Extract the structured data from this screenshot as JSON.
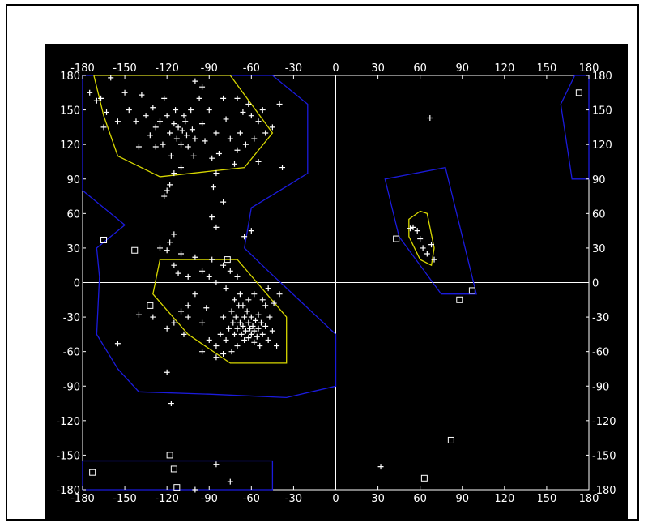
{
  "colors": {
    "background": "#000000",
    "frame": "#ffffff",
    "axes_lines": "#ffffff",
    "region_core": "#d8d800",
    "region_allowed": "#1b1bdd",
    "points": "#ffffff"
  },
  "chart_data": {
    "type": "scatter",
    "title": "",
    "xlabel": "",
    "ylabel": "",
    "xlim": [
      -180,
      180
    ],
    "ylim": [
      -180,
      180
    ],
    "grid": false,
    "x_ticks": [
      -180,
      -150,
      -120,
      -90,
      -60,
      -30,
      0,
      30,
      60,
      90,
      120,
      150,
      180
    ],
    "y_ticks": [
      -180,
      -150,
      -120,
      -90,
      -60,
      -30,
      0,
      30,
      60,
      90,
      120,
      150,
      180
    ],
    "x_tick_labels": [
      "-180",
      "-150",
      "-120",
      "-90",
      "-60",
      "-30",
      "0",
      "30",
      "60",
      "90",
      "120",
      "150",
      "180"
    ],
    "y_tick_labels": [
      "-180",
      "-150",
      "-120",
      "-90",
      "-60",
      "-30",
      "0",
      "30",
      "60",
      "90",
      "120",
      "150",
      "180"
    ],
    "regions": [
      {
        "kind": "allowed",
        "color": "#1b1bdd",
        "points": [
          [
            -180,
            180
          ],
          [
            -45,
            180
          ],
          [
            -20,
            155
          ],
          [
            -20,
            95
          ],
          [
            -33,
            85
          ],
          [
            -60,
            65
          ],
          [
            -65,
            30
          ],
          [
            -48,
            10
          ],
          [
            0,
            -45
          ],
          [
            0,
            -90
          ],
          [
            -35,
            -100
          ],
          [
            -90,
            -97
          ],
          [
            -140,
            -95
          ],
          [
            -155,
            -75
          ],
          [
            -170,
            -45
          ],
          [
            -168,
            5
          ],
          [
            -170,
            30
          ],
          [
            -150,
            50
          ],
          [
            -180,
            80
          ]
        ]
      },
      {
        "kind": "allowed",
        "color": "#1b1bdd",
        "points": [
          [
            35,
            90
          ],
          [
            78,
            100
          ],
          [
            100,
            -10
          ],
          [
            75,
            -10
          ],
          [
            45,
            40
          ]
        ]
      },
      {
        "kind": "allowed",
        "color": "#1b1bdd",
        "points": [
          [
            170,
            180
          ],
          [
            180,
            180
          ],
          [
            180,
            90
          ],
          [
            168,
            90
          ],
          [
            160,
            155
          ]
        ]
      },
      {
        "kind": "allowed",
        "color": "#1b1bdd",
        "points": [
          [
            -180,
            -155
          ],
          [
            -45,
            -155
          ],
          [
            -45,
            -180
          ],
          [
            -180,
            -180
          ]
        ]
      },
      {
        "kind": "core",
        "color": "#d8d800",
        "points": [
          [
            -172,
            180
          ],
          [
            -75,
            180
          ],
          [
            -45,
            130
          ],
          [
            -65,
            100
          ],
          [
            -125,
            92
          ],
          [
            -155,
            110
          ],
          [
            -165,
            145
          ]
        ]
      },
      {
        "kind": "core",
        "color": "#d8d800",
        "points": [
          [
            -125,
            20
          ],
          [
            -70,
            20
          ],
          [
            -35,
            -30
          ],
          [
            -35,
            -70
          ],
          [
            -75,
            -70
          ],
          [
            -105,
            -45
          ],
          [
            -130,
            -10
          ]
        ]
      },
      {
        "kind": "core",
        "color": "#d8d800",
        "points": [
          [
            52,
            55
          ],
          [
            60,
            62
          ],
          [
            65,
            60
          ],
          [
            70,
            30
          ],
          [
            68,
            15
          ],
          [
            60,
            20
          ],
          [
            52,
            40
          ]
        ]
      }
    ],
    "series": [
      {
        "marker": "plus",
        "color": "#ffffff",
        "points": [
          [
            -175,
            165
          ],
          [
            -170,
            158
          ],
          [
            -167,
            160
          ],
          [
            -163,
            148
          ],
          [
            -165,
            135
          ],
          [
            -160,
            178
          ],
          [
            -150,
            165
          ],
          [
            -147,
            150
          ],
          [
            -142,
            140
          ],
          [
            -138,
            163
          ],
          [
            -135,
            145
          ],
          [
            -132,
            128
          ],
          [
            -130,
            152
          ],
          [
            -128,
            135
          ],
          [
            -125,
            140
          ],
          [
            -123,
            120
          ],
          [
            -122,
            160
          ],
          [
            -120,
            145
          ],
          [
            -118,
            130
          ],
          [
            -117,
            110
          ],
          [
            -115,
            138
          ],
          [
            -114,
            150
          ],
          [
            -113,
            125
          ],
          [
            -112,
            135
          ],
          [
            -110,
            120
          ],
          [
            -109,
            132
          ],
          [
            -108,
            145
          ],
          [
            -107,
            140
          ],
          [
            -106,
            128
          ],
          [
            -105,
            118
          ],
          [
            -103,
            150
          ],
          [
            -102,
            133
          ],
          [
            -101,
            110
          ],
          [
            -100,
            125
          ],
          [
            -97,
            160
          ],
          [
            -95,
            138
          ],
          [
            -93,
            123
          ],
          [
            -90,
            150
          ],
          [
            -88,
            108
          ],
          [
            -85,
            130
          ],
          [
            -83,
            112
          ],
          [
            -80,
            160
          ],
          [
            -78,
            142
          ],
          [
            -75,
            125
          ],
          [
            -72,
            103
          ],
          [
            -70,
            115
          ],
          [
            -68,
            130
          ],
          [
            -66,
            148
          ],
          [
            -64,
            120
          ],
          [
            -62,
            155
          ],
          [
            -60,
            145
          ],
          [
            -58,
            125
          ],
          [
            -55,
            140
          ],
          [
            -52,
            150
          ],
          [
            -50,
            130
          ],
          [
            -115,
            95
          ],
          [
            -118,
            85
          ],
          [
            -120,
            80
          ],
          [
            -122,
            75
          ],
          [
            -110,
            100
          ],
          [
            -128,
            118
          ],
          [
            -140,
            118
          ],
          [
            -155,
            140
          ],
          [
            -85,
            95
          ],
          [
            -87,
            83
          ],
          [
            -95,
            170
          ],
          [
            -100,
            175
          ],
          [
            -70,
            160
          ],
          [
            -80,
            70
          ],
          [
            -88,
            57
          ],
          [
            -85,
            48
          ],
          [
            -65,
            40
          ],
          [
            -60,
            45
          ],
          [
            -55,
            105
          ],
          [
            -45,
            135
          ],
          [
            -40,
            155
          ],
          [
            -38,
            100
          ],
          [
            -115,
            42
          ],
          [
            -118,
            35
          ],
          [
            -120,
            28
          ],
          [
            -125,
            30
          ],
          [
            -110,
            25
          ],
          [
            -115,
            15
          ],
          [
            -112,
            8
          ],
          [
            -105,
            5
          ],
          [
            -100,
            22
          ],
          [
            -95,
            10
          ],
          [
            -90,
            5
          ],
          [
            -88,
            20
          ],
          [
            -85,
            0
          ],
          [
            -80,
            15
          ],
          [
            -78,
            -5
          ],
          [
            -75,
            10
          ],
          [
            -72,
            -15
          ],
          [
            -70,
            5
          ],
          [
            -68,
            -10
          ],
          [
            -100,
            -10
          ],
          [
            -105,
            -20
          ],
          [
            -110,
            -25
          ],
          [
            -115,
            -35
          ],
          [
            -108,
            -45
          ],
          [
            -95,
            -35
          ],
          [
            -92,
            -22
          ],
          [
            -90,
            -50
          ],
          [
            -85,
            -55
          ],
          [
            -82,
            -45
          ],
          [
            -80,
            -30
          ],
          [
            -78,
            -50
          ],
          [
            -76,
            -40
          ],
          [
            -74,
            -25
          ],
          [
            -73,
            -35
          ],
          [
            -72,
            -45
          ],
          [
            -71,
            -30
          ],
          [
            -70,
            -55
          ],
          [
            -70,
            -40
          ],
          [
            -69,
            -20
          ],
          [
            -68,
            -35
          ],
          [
            -67,
            -45
          ],
          [
            -66,
            -38
          ],
          [
            -65,
            -50
          ],
          [
            -65,
            -30
          ],
          [
            -64,
            -42
          ],
          [
            -63,
            -25
          ],
          [
            -62,
            -48
          ],
          [
            -62,
            -35
          ],
          [
            -61,
            -40
          ],
          [
            -60,
            -30
          ],
          [
            -60,
            -45
          ],
          [
            -59,
            -38
          ],
          [
            -58,
            -52
          ],
          [
            -58,
            -42
          ],
          [
            -57,
            -33
          ],
          [
            -56,
            -47
          ],
          [
            -55,
            -40
          ],
          [
            -55,
            -28
          ],
          [
            -54,
            -55
          ],
          [
            -53,
            -35
          ],
          [
            -52,
            -45
          ],
          [
            -50,
            -38
          ],
          [
            -50,
            -20
          ],
          [
            -48,
            -50
          ],
          [
            -47,
            -30
          ],
          [
            -45,
            -42
          ],
          [
            -44,
            -18
          ],
          [
            -42,
            -55
          ],
          [
            -40,
            -10
          ],
          [
            -48,
            -5
          ],
          [
            -52,
            -15
          ],
          [
            -58,
            -10
          ],
          [
            -62,
            -15
          ],
          [
            -66,
            -20
          ],
          [
            -74,
            -60
          ],
          [
            -80,
            -62
          ],
          [
            -85,
            -65
          ],
          [
            -95,
            -60
          ],
          [
            -105,
            -30
          ],
          [
            -120,
            -40
          ],
          [
            -130,
            -30
          ],
          [
            -140,
            -28
          ],
          [
            -155,
            -53
          ],
          [
            -120,
            -78
          ],
          [
            -117,
            -105
          ],
          [
            -85,
            -158
          ],
          [
            -75,
            -173
          ],
          [
            -100,
            -180
          ],
          [
            67,
            143
          ],
          [
            53,
            47
          ],
          [
            55,
            48
          ],
          [
            58,
            45
          ],
          [
            60,
            38
          ],
          [
            62,
            30
          ],
          [
            65,
            25
          ],
          [
            68,
            33
          ],
          [
            70,
            20
          ],
          [
            32,
            -160
          ]
        ]
      },
      {
        "marker": "square",
        "color": "#ffffff",
        "points": [
          [
            -165,
            37
          ],
          [
            -143,
            28
          ],
          [
            -132,
            -20
          ],
          [
            -77,
            20
          ],
          [
            43,
            38
          ],
          [
            88,
            -15
          ],
          [
            97,
            -7
          ],
          [
            173,
            165
          ],
          [
            -173,
            -165
          ],
          [
            -118,
            -150
          ],
          [
            -115,
            -162
          ],
          [
            -113,
            -178
          ],
          [
            63,
            -170
          ],
          [
            82,
            -137
          ]
        ]
      }
    ]
  }
}
